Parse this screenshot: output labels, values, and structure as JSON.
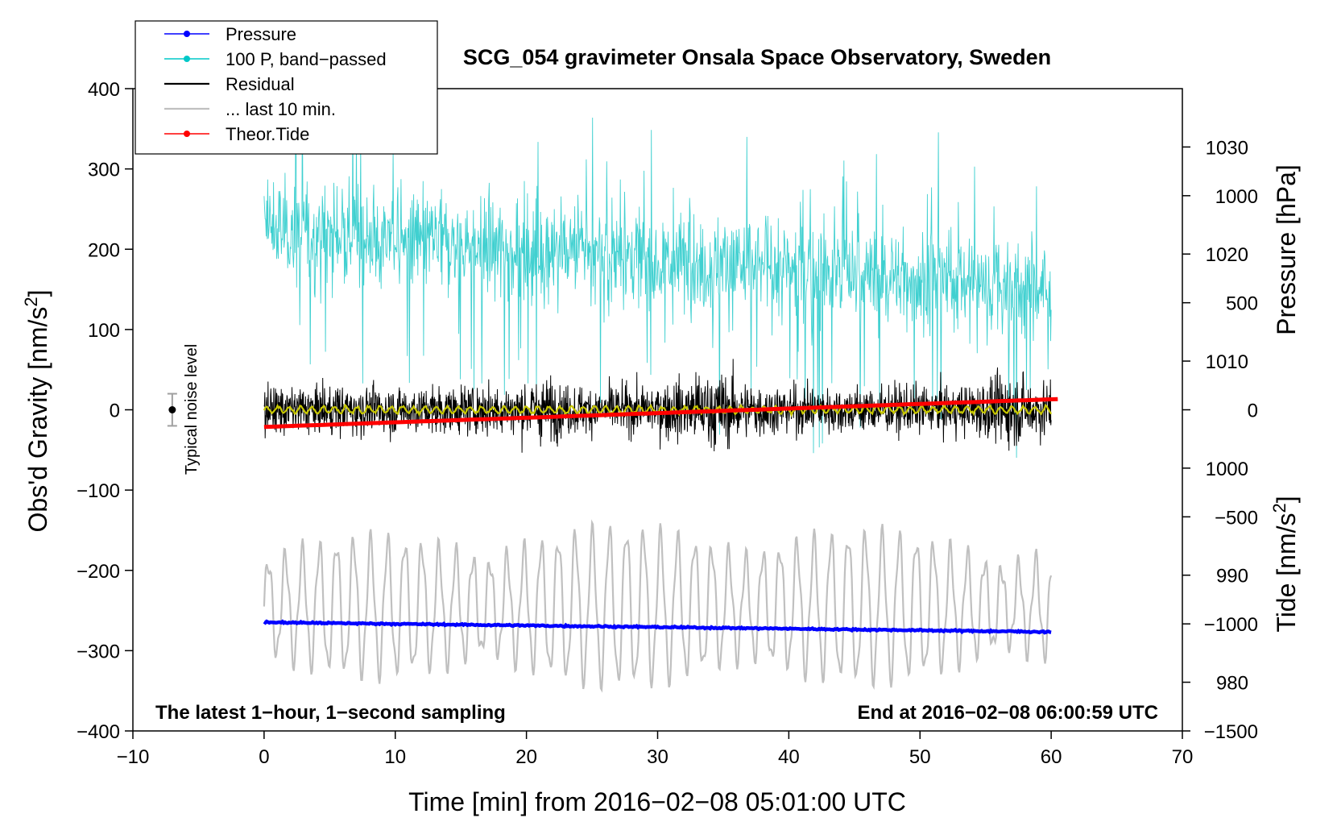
{
  "chart_data": {
    "type": "line",
    "title": "SCG_054 gravimeter Onsala Space Observatory, Sweden",
    "xlabel": "Time [min] from 2016−02−08 05:01:00 UTC",
    "ylabel_left_main": "Obs'd Gravity [nm/s",
    "ylabel_left_sup": "2",
    "ylabel_left_end": "]",
    "ylabel_right_pressure": "Pressure [hPa]",
    "ylabel_right_tide_main": "Tide [nm/s",
    "ylabel_right_tide_sup": "2",
    "ylabel_right_tide_end": "]",
    "xlim": [
      -10,
      70
    ],
    "ylim": [
      -400,
      400
    ],
    "pressure_range": [
      975.45,
      1035.45
    ],
    "tide_range": [
      -1500,
      1500
    ],
    "x_ticks": [
      "−10",
      "0",
      "10",
      "20",
      "30",
      "40",
      "50",
      "60",
      "70"
    ],
    "x_tick_values": [
      -10,
      0,
      10,
      20,
      30,
      40,
      50,
      60,
      70
    ],
    "y_ticks": [
      "400",
      "300",
      "200",
      "100",
      "0",
      "−100",
      "−200",
      "−300",
      "−400"
    ],
    "y_tick_values": [
      400,
      300,
      200,
      100,
      0,
      -100,
      -200,
      -300,
      -400
    ],
    "pressure_ticks": [
      "1030",
      "1020",
      "1010",
      "1000",
      "990",
      "980"
    ],
    "pressure_tick_values": [
      1030,
      1020,
      1010,
      1000,
      990,
      980
    ],
    "tide_ticks": [
      "1000",
      "500",
      "0",
      "−500",
      "−1000",
      "−1500"
    ],
    "tide_tick_values": [
      1000,
      500,
      0,
      -500,
      -1000,
      -1500
    ],
    "left_note": "The latest 1−hour, 1−second sampling",
    "right_note": "End at 2016−02−08 06:00:59 UTC",
    "noise_label": "Typical noise level",
    "noise_bar": {
      "x": -7,
      "center": 0,
      "half_range": 20
    },
    "legend": [
      {
        "label": "Pressure",
        "color": "#0000ff",
        "marker": true
      },
      {
        "label": "100 P, band−passed",
        "color": "#00c8c8",
        "marker": true
      },
      {
        "label": "Residual",
        "color": "#000000",
        "marker": false
      },
      {
        "label": "... last 10 min.",
        "color": "#c0c0c0",
        "marker": false
      },
      {
        "label": "Theor.Tide",
        "color": "#ff0000",
        "marker": true
      }
    ],
    "series": [
      {
        "name": "Pressure",
        "color": "#0000ff",
        "axis": "pressure",
        "x_range": [
          0,
          60
        ],
        "start": 985.6,
        "end": 984.7
      },
      {
        "name": "100 P, band−passed",
        "color": "#40d0d0",
        "axis": "gravity",
        "x_range": [
          0,
          60
        ],
        "mean_start": 225,
        "mean_end": 150,
        "amplitude": 75
      },
      {
        "name": "Residual",
        "color": "#000000",
        "axis": "gravity",
        "x_range": [
          0,
          60
        ],
        "mean": 0,
        "amplitude": 45
      },
      {
        "name": "Residual (smoothed)",
        "color": "#c8c800",
        "axis": "gravity",
        "x_range": [
          0,
          60
        ],
        "mean": 0,
        "amplitude": 4
      },
      {
        "name": "... last 10 min.",
        "color": "#c0c0c0",
        "axis": "gravity",
        "x_range": [
          0,
          60
        ],
        "mean": -245,
        "amplitude": 75
      },
      {
        "name": "Theor.Tide",
        "color": "#ff0000",
        "axis": "tide",
        "x_range": [
          0,
          60.5
        ],
        "start": -80,
        "end": 50
      }
    ]
  }
}
